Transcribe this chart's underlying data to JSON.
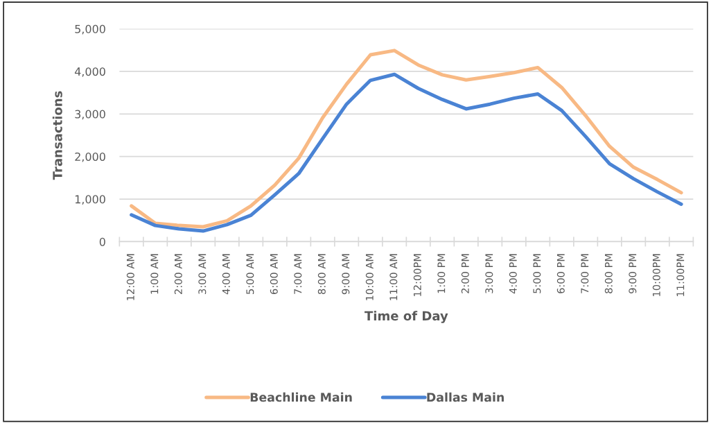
{
  "chart_data": {
    "type": "line",
    "xlabel": "Time of Day",
    "ylabel": "Transactions",
    "categories": [
      "12:00 AM",
      "1:00 AM",
      "2:00 AM",
      "3:00 AM",
      "4:00 AM",
      "5:00 AM",
      "6:00 AM",
      "7:00 AM",
      "8:00 AM",
      "9:00 AM",
      "10:00 AM",
      "11:00 AM",
      "12:00PM",
      "1:00 PM",
      "2:00 PM",
      "3:00 PM",
      "4:00 PM",
      "5:00 PM",
      "6:00 PM",
      "7:00 PM",
      "8:00 PM",
      "9:00 PM",
      "10:00PM",
      "11:00PM"
    ],
    "series": [
      {
        "name": "Beachline Main",
        "color": "#f8b984",
        "values": [
          840,
          430,
          380,
          350,
          490,
          840,
          1330,
          1960,
          2910,
          3700,
          4390,
          4490,
          4150,
          3920,
          3800,
          3880,
          3970,
          4090,
          3620,
          2960,
          2240,
          1750,
          1460,
          1150
        ]
      },
      {
        "name": "Dallas Main",
        "color": "#4a83d4",
        "values": [
          630,
          380,
          300,
          250,
          400,
          620,
          1100,
          1600,
          2420,
          3230,
          3790,
          3930,
          3600,
          3340,
          3120,
          3230,
          3370,
          3470,
          3080,
          2470,
          1830,
          1480,
          1170,
          880
        ]
      }
    ],
    "ylim": [
      0,
      5000
    ],
    "yticks": [
      0,
      {
        "value": 1000,
        "label": "1,000"
      },
      {
        "value": 2000,
        "label": "2,000"
      },
      {
        "value": 3000,
        "label": "3,000"
      },
      {
        "value": 4000,
        "label": "4,000"
      },
      {
        "value": 5000,
        "label": "5,000"
      }
    ],
    "grid": "y",
    "legend": "bottom",
    "line_style": "solid"
  }
}
